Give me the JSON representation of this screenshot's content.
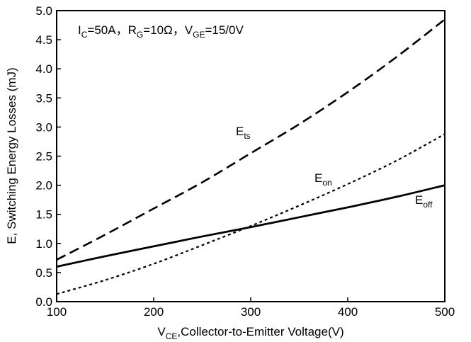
{
  "chart_data": {
    "type": "line",
    "title": "",
    "xlabel_main": "V",
    "xlabel_sub": "CE",
    "xlabel_rest": ",Collector-to-Emitter Voltage(V)",
    "ylabel": "E, Switching Energy Losses (mJ)",
    "xlim": [
      100,
      500
    ],
    "ylim": [
      0.0,
      5.0
    ],
    "x_ticks": [
      "100",
      "200",
      "300",
      "400",
      "500"
    ],
    "y_ticks": [
      "0.0",
      "0.5",
      "1.0",
      "1.5",
      "2.0",
      "2.5",
      "3.0",
      "3.5",
      "4.0",
      "4.5",
      "5.0"
    ],
    "grid": false,
    "conditions": {
      "ic_main": "I",
      "ic_sub": "C",
      "ic_val": "=50A，",
      "rg_main": "R",
      "rg_sub": "G",
      "rg_val": "=10Ω，",
      "vge_main": "V",
      "vge_sub": "GE",
      "vge_val": "=15/0V"
    },
    "series": [
      {
        "name": "E_ts",
        "label_main": "E",
        "label_sub": "ts",
        "style": "dashed",
        "x": [
          100,
          150,
          200,
          250,
          300,
          350,
          400,
          450,
          500
        ],
        "y": [
          0.72,
          1.15,
          1.6,
          2.05,
          2.55,
          3.05,
          3.6,
          4.2,
          4.85
        ]
      },
      {
        "name": "E_on",
        "label_main": "E",
        "label_sub": "on",
        "style": "dotted",
        "x": [
          100,
          150,
          200,
          250,
          300,
          350,
          400,
          450,
          500
        ],
        "y": [
          0.13,
          0.37,
          0.65,
          0.97,
          1.3,
          1.65,
          2.02,
          2.42,
          2.88
        ]
      },
      {
        "name": "E_off",
        "label_main": "E",
        "label_sub": "off",
        "style": "solid",
        "x": [
          100,
          150,
          200,
          250,
          300,
          350,
          400,
          450,
          500
        ],
        "y": [
          0.6,
          0.78,
          0.95,
          1.12,
          1.28,
          1.45,
          1.62,
          1.8,
          2.0
        ]
      }
    ]
  }
}
